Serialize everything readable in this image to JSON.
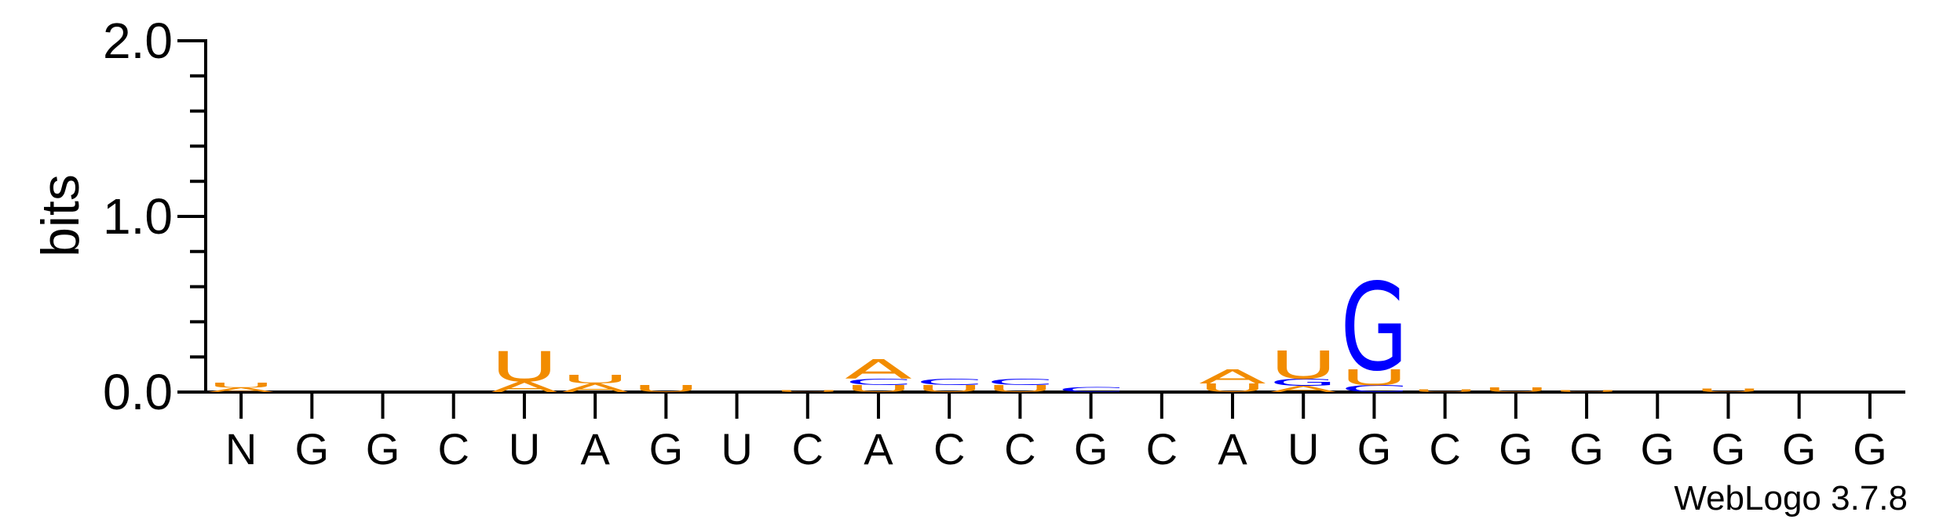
{
  "chart_data": {
    "type": "sequence-logo",
    "ylabel": "bits",
    "ylim": [
      0,
      2.0
    ],
    "y_ticks": [
      "0.0",
      "1.0",
      "2.0"
    ],
    "positions": [
      "N",
      "G",
      "G",
      "C",
      "U",
      "A",
      "G",
      "U",
      "C",
      "A",
      "C",
      "C",
      "G",
      "C",
      "A",
      "U",
      "G",
      "C",
      "G",
      "G",
      "G",
      "G",
      "G",
      "G"
    ],
    "stacks": [
      [
        {
          "base": "A",
          "bits": 0.025
        },
        {
          "base": "U",
          "bits": 0.03
        }
      ],
      [],
      [],
      [],
      [
        {
          "base": "A",
          "bits": 0.06
        },
        {
          "base": "U",
          "bits": 0.17
        }
      ],
      [
        {
          "base": "A",
          "bits": 0.05
        },
        {
          "base": "U",
          "bits": 0.05
        }
      ],
      [
        {
          "base": "U",
          "bits": 0.04
        }
      ],
      [],
      [
        {
          "base": "U",
          "bits": 0.01
        }
      ],
      [
        {
          "base": "U",
          "bits": 0.04
        },
        {
          "base": "C",
          "bits": 0.035
        },
        {
          "base": "A",
          "bits": 0.11
        }
      ],
      [
        {
          "base": "U",
          "bits": 0.04
        },
        {
          "base": "C",
          "bits": 0.035
        }
      ],
      [
        {
          "base": "U",
          "bits": 0.04
        },
        {
          "base": "C",
          "bits": 0.035
        }
      ],
      [
        {
          "base": "C",
          "bits": 0.03
        }
      ],
      [],
      [
        {
          "base": "U",
          "bits": 0.05
        },
        {
          "base": "A",
          "bits": 0.08
        }
      ],
      [
        {
          "base": "A",
          "bits": 0.035
        },
        {
          "base": "G",
          "bits": 0.04
        },
        {
          "base": "U",
          "bits": 0.16
        }
      ],
      [
        {
          "base": "C",
          "bits": 0.04
        },
        {
          "base": "U",
          "bits": 0.09
        },
        {
          "base": "G",
          "bits": 0.5
        }
      ],
      [
        {
          "base": "U",
          "bits": 0.015
        }
      ],
      [
        {
          "base": "U",
          "bits": 0.025
        }
      ],
      [
        {
          "base": "U",
          "bits": 0.012
        }
      ],
      [],
      [
        {
          "base": "U",
          "bits": 0.02
        }
      ],
      [],
      []
    ],
    "colors": {
      "A": "#f28c00",
      "U": "#f28c00",
      "G": "#0000ff",
      "C": "#0000ff"
    },
    "footer": "WebLogo 3.7.8"
  }
}
